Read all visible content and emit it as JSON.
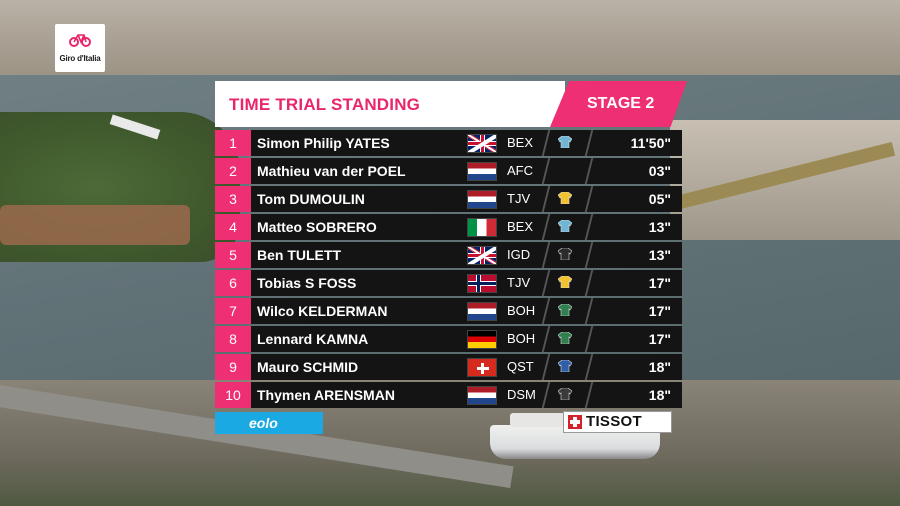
{
  "logo": {
    "text": "Giro d'Italia",
    "icon": "bicycle-icon"
  },
  "header": {
    "title": "TIME TRIAL STANDING",
    "stage": "STAGE 2"
  },
  "colors": {
    "accent_pink": "#ee2f73",
    "row_bg": "#141414",
    "eolo_blue": "#1aa9e3"
  },
  "rows": [
    {
      "rank": "1",
      "name": "Simon Philip YATES",
      "flag": "gb",
      "team": "BEX",
      "jersey": "#6fb5d6",
      "time": "11'50\""
    },
    {
      "rank": "2",
      "name": "Mathieu van der POEL",
      "flag": "nl",
      "team": "AFC",
      "jersey": "",
      "time": "03\""
    },
    {
      "rank": "3",
      "name": "Tom DUMOULIN",
      "flag": "nl",
      "team": "TJV",
      "jersey": "#f2c12e",
      "time": "05\""
    },
    {
      "rank": "4",
      "name": "Matteo SOBRERO",
      "flag": "it",
      "team": "BEX",
      "jersey": "#6fb5d6",
      "time": "13\""
    },
    {
      "rank": "5",
      "name": "Ben TULETT",
      "flag": "gb",
      "team": "IGD",
      "jersey": "#2b2b2b",
      "time": "13\""
    },
    {
      "rank": "6",
      "name": "Tobias S FOSS",
      "flag": "no",
      "team": "TJV",
      "jersey": "#f2c12e",
      "time": "17\""
    },
    {
      "rank": "7",
      "name": "Wilco KELDERMAN",
      "flag": "nl",
      "team": "BOH",
      "jersey": "#2f7f4f",
      "time": "17\""
    },
    {
      "rank": "8",
      "name": "Lennard KAMNA",
      "flag": "de",
      "team": "BOH",
      "jersey": "#2f7f4f",
      "time": "17\""
    },
    {
      "rank": "9",
      "name": "Mauro SCHMID",
      "flag": "ch",
      "team": "QST",
      "jersey": "#2e5fa8",
      "time": "18\""
    },
    {
      "rank": "10",
      "name": "Thymen ARENSMAN",
      "flag": "nl",
      "team": "DSM",
      "jersey": "#3a3a3a",
      "time": "18\""
    }
  ],
  "sponsors": {
    "left": "eolo",
    "right": "TISSOT"
  }
}
